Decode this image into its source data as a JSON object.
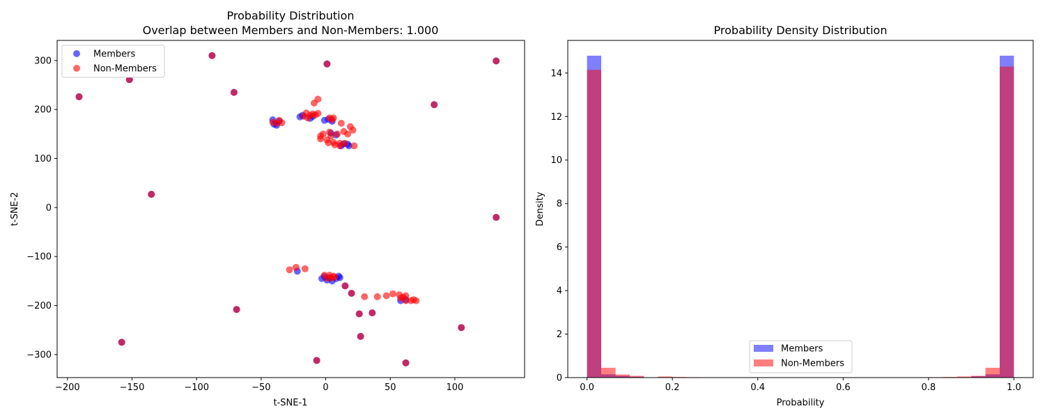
{
  "chart_data": [
    {
      "type": "scatter",
      "title": "Probability Distribution",
      "subtitle": "Overlap between Members and Non-Members: 1.000",
      "xlabel": "t-SNE-1",
      "ylabel": "t-SNE-2",
      "xlim": [
        -208,
        154
      ],
      "ylim": [
        -347,
        341
      ],
      "xticks": [
        -200,
        -150,
        -100,
        -50,
        0,
        50,
        100
      ],
      "xtick_labels": [
        "−200",
        "−150",
        "−100",
        "−50",
        "0",
        "50",
        "100"
      ],
      "yticks": [
        -300,
        -200,
        -100,
        0,
        100,
        200,
        300
      ],
      "ytick_labels": [
        "−300",
        "−200",
        "−100",
        "0",
        "100",
        "200",
        "300"
      ],
      "grid": false,
      "legend_position": "upper-left",
      "series": [
        {
          "name": "Members",
          "color": "#0000ff",
          "alpha": 0.6,
          "points": [
            [
              -191,
              226
            ],
            [
              -152,
              261
            ],
            [
              -88,
              310
            ],
            [
              -71,
              235
            ],
            [
              -135,
              27
            ],
            [
              -158,
              -275
            ],
            [
              -69,
              -208
            ],
            [
              -7,
              -312
            ],
            [
              1,
              293
            ],
            [
              84,
              210
            ],
            [
              132,
              299
            ],
            [
              132,
              -20
            ],
            [
              105,
              -245
            ],
            [
              26,
              -217
            ],
            [
              27,
              -263
            ],
            [
              36,
              -215
            ],
            [
              62,
              -317
            ],
            [
              -41,
              179
            ],
            [
              -40,
              170
            ],
            [
              -38,
              168
            ],
            [
              -36,
              176
            ],
            [
              -20,
              185
            ],
            [
              -18,
              188
            ],
            [
              -12,
              182
            ],
            [
              -10,
              186
            ],
            [
              -1,
              178
            ],
            [
              2,
              180
            ],
            [
              5,
              176
            ],
            [
              4,
              152
            ],
            [
              8,
              148
            ],
            [
              12,
              126
            ],
            [
              14,
              130
            ],
            [
              17,
              129
            ],
            [
              18,
              126
            ],
            [
              -3,
              -145
            ],
            [
              -1,
              -141
            ],
            [
              1,
              -148
            ],
            [
              3,
              -143
            ],
            [
              5,
              -150
            ],
            [
              8,
              -145
            ],
            [
              10,
              -140
            ],
            [
              11,
              -143
            ],
            [
              -22,
              -130
            ],
            [
              20,
              -175
            ],
            [
              15,
              -160
            ],
            [
              58,
              -190
            ],
            [
              62,
              -188
            ]
          ]
        },
        {
          "name": "Non-Members",
          "color": "#ff0000",
          "alpha": 0.6,
          "points": [
            [
              -191,
              226
            ],
            [
              -152,
              261
            ],
            [
              -88,
              310
            ],
            [
              -71,
              235
            ],
            [
              -135,
              27
            ],
            [
              -158,
              -275
            ],
            [
              -69,
              -208
            ],
            [
              -7,
              -312
            ],
            [
              1,
              293
            ],
            [
              84,
              210
            ],
            [
              132,
              299
            ],
            [
              132,
              -20
            ],
            [
              105,
              -245
            ],
            [
              26,
              -217
            ],
            [
              27,
              -263
            ],
            [
              36,
              -215
            ],
            [
              62,
              -317
            ],
            [
              -41,
              174
            ],
            [
              -38,
              172
            ],
            [
              -36,
              178
            ],
            [
              -34,
              173
            ],
            [
              -17,
              186
            ],
            [
              -15,
              193
            ],
            [
              -14,
              183
            ],
            [
              -12,
              188
            ],
            [
              -10,
              191
            ],
            [
              -8,
              189
            ],
            [
              -6,
              192
            ],
            [
              -9,
              213
            ],
            [
              -6,
              221
            ],
            [
              -4,
              146
            ],
            [
              -4,
              140
            ],
            [
              -2,
              150
            ],
            [
              1,
              138
            ],
            [
              2,
              132
            ],
            [
              3,
              154
            ],
            [
              3,
              183
            ],
            [
              5,
              179
            ],
            [
              6,
              183
            ],
            [
              4,
              146
            ],
            [
              6,
              133
            ],
            [
              7,
              128
            ],
            [
              9,
              150
            ],
            [
              11,
              131
            ],
            [
              11,
              126
            ],
            [
              12,
              172
            ],
            [
              14,
              155
            ],
            [
              15,
              131
            ],
            [
              17,
              150
            ],
            [
              19,
              165
            ],
            [
              21,
              158
            ],
            [
              22,
              126
            ],
            [
              -28,
              -127
            ],
            [
              -23,
              -122
            ],
            [
              -16,
              -125
            ],
            [
              -1,
              -138
            ],
            [
              1,
              -144
            ],
            [
              3,
              -138
            ],
            [
              4,
              -144
            ],
            [
              6,
              -140
            ],
            [
              7,
              -142
            ],
            [
              15,
              -160
            ],
            [
              20,
              -175
            ],
            [
              30,
              -182
            ],
            [
              40,
              -182
            ],
            [
              47,
              -180
            ],
            [
              52,
              -176
            ],
            [
              57,
              -178
            ],
            [
              58,
              -185
            ],
            [
              60,
              -183
            ],
            [
              62,
              -180
            ],
            [
              62,
              -190
            ],
            [
              66,
              -190
            ],
            [
              68,
              -188
            ],
            [
              70,
              -190
            ]
          ]
        }
      ]
    },
    {
      "type": "bar",
      "title": "Probability Density Distribution",
      "xlabel": "Probability",
      "ylabel": "Density",
      "xlim": [
        -0.045,
        1.045
      ],
      "ylim": [
        0,
        15.5
      ],
      "xticks": [
        0.0,
        0.2,
        0.4,
        0.6,
        0.8,
        1.0
      ],
      "xtick_labels": [
        "0.0",
        "0.2",
        "0.4",
        "0.6",
        "0.8",
        "1.0"
      ],
      "yticks": [
        0,
        2,
        4,
        6,
        8,
        10,
        12,
        14
      ],
      "ytick_labels": [
        "0",
        "2",
        "4",
        "6",
        "8",
        "10",
        "12",
        "14"
      ],
      "grid": false,
      "legend_position": "lower-center",
      "bin_width": 0.0333,
      "series": [
        {
          "name": "Members",
          "color": "#0000ff",
          "alpha": 0.5,
          "bins": [
            {
              "x0": 0.0,
              "x1": 0.0333,
              "density": 14.8
            },
            {
              "x0": 0.0333,
              "x1": 0.0667,
              "density": 0.15
            },
            {
              "x0": 0.0667,
              "x1": 0.1,
              "density": 0.08
            },
            {
              "x0": 0.1,
              "x1": 0.1333,
              "density": 0.04
            },
            {
              "x0": 0.9,
              "x1": 0.9333,
              "density": 0.06
            },
            {
              "x0": 0.9333,
              "x1": 0.9667,
              "density": 0.15
            },
            {
              "x0": 0.9667,
              "x1": 1.0,
              "density": 14.8
            }
          ]
        },
        {
          "name": "Non-Members",
          "color": "#ff0000",
          "alpha": 0.5,
          "bins": [
            {
              "x0": 0.0,
              "x1": 0.0333,
              "density": 14.15
            },
            {
              "x0": 0.0333,
              "x1": 0.0667,
              "density": 0.45
            },
            {
              "x0": 0.0667,
              "x1": 0.1,
              "density": 0.14
            },
            {
              "x0": 0.1,
              "x1": 0.1333,
              "density": 0.08
            },
            {
              "x0": 0.1667,
              "x1": 0.2,
              "density": 0.05
            },
            {
              "x0": 0.2,
              "x1": 0.2333,
              "density": 0.03
            },
            {
              "x0": 0.2333,
              "x1": 0.2667,
              "density": 0.02
            },
            {
              "x0": 0.8,
              "x1": 0.8333,
              "density": 0.02
            },
            {
              "x0": 0.8333,
              "x1": 0.8667,
              "density": 0.03
            },
            {
              "x0": 0.8667,
              "x1": 0.9,
              "density": 0.05
            },
            {
              "x0": 0.9,
              "x1": 0.9333,
              "density": 0.08
            },
            {
              "x0": 0.9333,
              "x1": 0.9667,
              "density": 0.45
            },
            {
              "x0": 0.9667,
              "x1": 1.0,
              "density": 14.3
            }
          ]
        }
      ]
    }
  ]
}
